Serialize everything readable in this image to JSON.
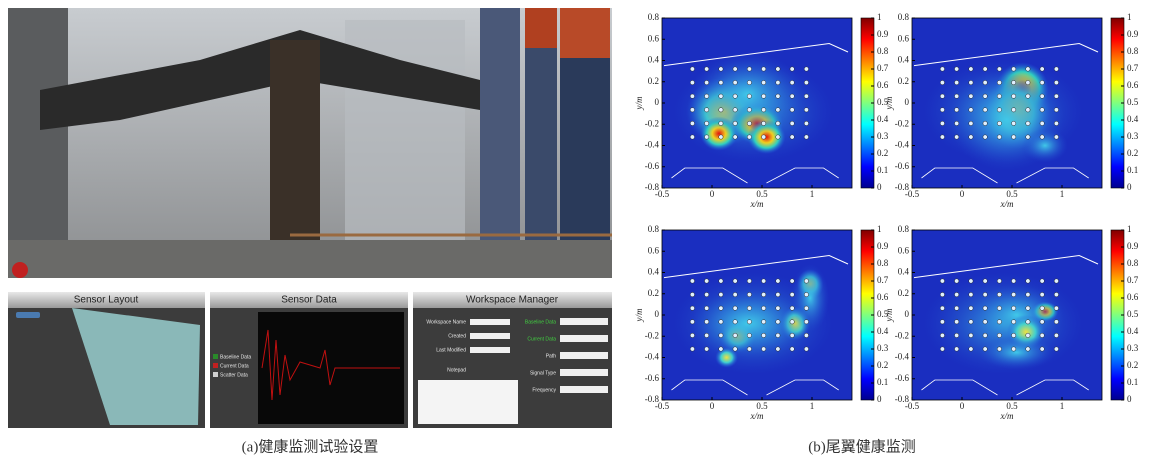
{
  "figure": {
    "panel_a": {
      "caption": "(a)健康监测试验设置",
      "software": {
        "sensor_layout": {
          "title": "Sensor Layout"
        },
        "sensor_data": {
          "title": "Sensor Data",
          "legend": [
            "Baseline Data",
            "Current Data",
            "Scatter Data"
          ]
        },
        "workspace_manager": {
          "title": "Workspace Manager",
          "fields": [
            "Workspace Name",
            "Created",
            "Last Modified",
            "Notepad"
          ],
          "options": [
            "Baseline Data",
            "Current Data",
            "Path",
            "Signal Type",
            "Frequency"
          ]
        }
      }
    },
    "panel_b": {
      "caption": "(b)尾翼健康监测"
    }
  },
  "chart_data": [
    {
      "type": "heatmap",
      "x_label": "x/m",
      "y_label": "y/m",
      "xlim": [
        -0.5,
        1.4
      ],
      "ylim": [
        -0.8,
        0.8
      ],
      "xticks": [
        -0.5,
        0,
        0.5,
        1
      ],
      "yticks": [
        -0.8,
        -0.6,
        -0.4,
        -0.2,
        0,
        0.2,
        0.4,
        0.6,
        0.8
      ],
      "clim": [
        0,
        1
      ],
      "cticks": [
        0,
        0.1,
        0.2,
        0.3,
        0.4,
        0.5,
        0.6,
        0.7,
        0.8,
        0.9,
        1
      ]
    },
    {
      "type": "heatmap",
      "x_label": "x/m",
      "y_label": "y/m",
      "xlim": [
        -0.5,
        1.4
      ],
      "ylim": [
        -0.8,
        0.8
      ],
      "xticks": [
        -0.5,
        0,
        0.5,
        1
      ],
      "yticks": [
        -0.8,
        -0.6,
        -0.4,
        -0.2,
        0,
        0.2,
        0.4,
        0.6,
        0.8
      ],
      "clim": [
        0,
        1
      ],
      "cticks": [
        0,
        0.1,
        0.2,
        0.3,
        0.4,
        0.5,
        0.6,
        0.7,
        0.8,
        0.9,
        1
      ]
    },
    {
      "type": "heatmap",
      "x_label": "x/m",
      "y_label": "y/m",
      "xlim": [
        -0.5,
        1.4
      ],
      "ylim": [
        -0.8,
        0.8
      ],
      "xticks": [
        -0.5,
        0,
        0.5,
        1
      ],
      "yticks": [
        -0.8,
        -0.6,
        -0.4,
        -0.2,
        0,
        0.2,
        0.4,
        0.6,
        0.8
      ],
      "clim": [
        0,
        1
      ],
      "cticks": [
        0,
        0.1,
        0.2,
        0.3,
        0.4,
        0.5,
        0.6,
        0.7,
        0.8,
        0.9,
        1
      ]
    },
    {
      "type": "heatmap",
      "x_label": "x/m",
      "y_label": "y/m",
      "xlim": [
        -0.5,
        1.4
      ],
      "ylim": [
        -0.8,
        0.8
      ],
      "xticks": [
        -0.5,
        0,
        0.5,
        1
      ],
      "yticks": [
        -0.8,
        -0.6,
        -0.4,
        -0.2,
        0,
        0.2,
        0.4,
        0.6,
        0.8
      ],
      "clim": [
        0,
        1
      ],
      "cticks": [
        0,
        0.1,
        0.2,
        0.3,
        0.4,
        0.5,
        0.6,
        0.7,
        0.8,
        0.9,
        1
      ]
    }
  ]
}
